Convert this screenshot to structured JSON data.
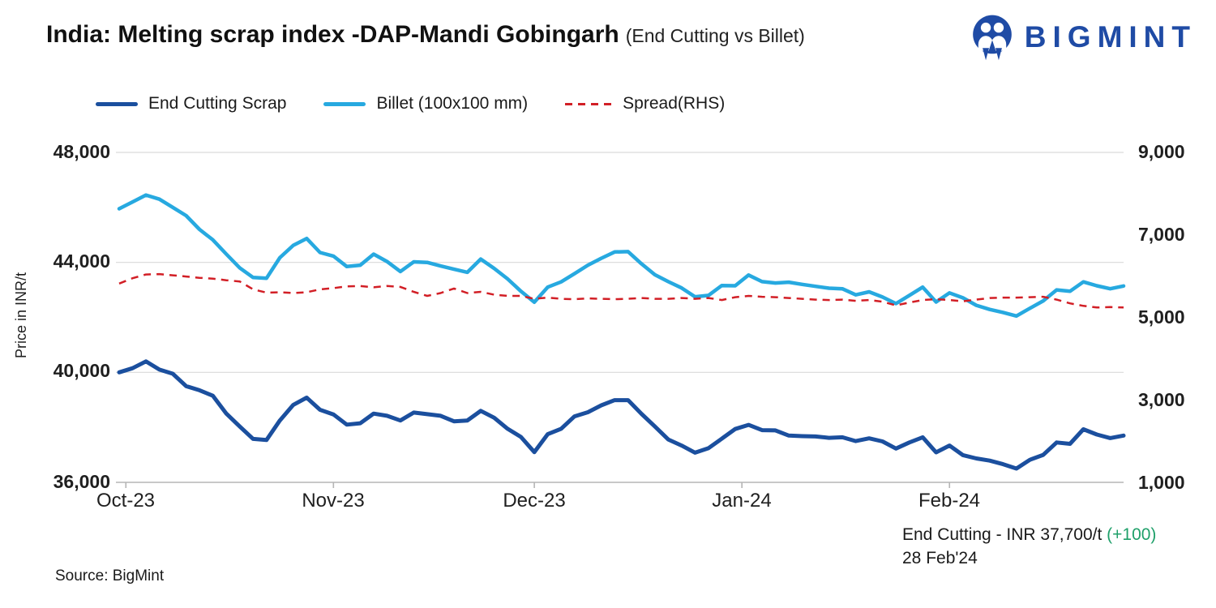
{
  "header": {
    "title": "India: Melting scrap index -DAP-Mandi Gobingarh",
    "subtitle": "(End Cutting vs Billet)",
    "logo_text": "BIGMINT",
    "brand_color": "#1F4BA5"
  },
  "legend": {
    "items": [
      {
        "label": "End Cutting Scrap",
        "color": "#1B4F9E",
        "style": "solid"
      },
      {
        "label": "Billet (100x100 mm)",
        "color": "#27A9E0",
        "style": "solid"
      },
      {
        "label": "Spread(RHS)",
        "color": "#D21F26",
        "style": "dashed"
      }
    ]
  },
  "chart_data": {
    "type": "line",
    "title": "India: Melting scrap index -DAP-Mandi Gobingarh (End Cutting vs Billet)",
    "x": {
      "unit": "days from 1 Oct 2023",
      "tick_labels": [
        "Oct-23",
        "Nov-23",
        "Dec-23",
        "Jan-24",
        "Feb-24"
      ],
      "tick_days": [
        1,
        32,
        62,
        93,
        124
      ],
      "total_days": 150,
      "point_step_days": 2
    },
    "left_axis": {
      "label": "Price in INR/t",
      "min": 36000,
      "max": 48000,
      "ticks": [
        "48,000",
        "44,000",
        "40,000",
        "36,000"
      ],
      "tick_values": [
        48000,
        44000,
        40000,
        36000
      ]
    },
    "right_axis": {
      "min": 1000,
      "max": 9000,
      "ticks": [
        "9,000",
        "7,000",
        "5,000",
        "3,000",
        "1,000"
      ],
      "tick_values": [
        9000,
        7000,
        5000,
        3000,
        1000
      ]
    },
    "grid": "horizontal",
    "legend_position": "top",
    "series": [
      {
        "name": "End Cutting Scrap",
        "axis": "left",
        "color": "#1B4F9E",
        "dash": null,
        "width": 5,
        "values": [
          40000,
          40150,
          40400,
          40100,
          39950,
          39500,
          39350,
          39150,
          38500,
          38030,
          37580,
          37540,
          38250,
          38820,
          39080,
          38640,
          38470,
          38100,
          38150,
          38500,
          38420,
          38250,
          38540,
          38480,
          38420,
          38220,
          38250,
          38600,
          38350,
          37950,
          37650,
          37100,
          37750,
          37950,
          38400,
          38550,
          38800,
          38990,
          38990,
          38490,
          38030,
          37560,
          37340,
          37080,
          37240,
          37590,
          37940,
          38090,
          37900,
          37890,
          37700,
          37680,
          37670,
          37620,
          37640,
          37500,
          37600,
          37490,
          37230,
          37450,
          37640,
          37090,
          37340,
          36990,
          36870,
          36790,
          36660,
          36500,
          36820,
          37000,
          37450,
          37400,
          37930,
          37740,
          37610,
          37700
        ]
      },
      {
        "name": "Billet (100x100 mm)",
        "axis": "left",
        "color": "#27A9E0",
        "dash": null,
        "width": 4.5,
        "values": [
          45950,
          46200,
          46450,
          46300,
          46000,
          45700,
          45200,
          44820,
          44300,
          43800,
          43450,
          43420,
          44170,
          44620,
          44870,
          44360,
          44230,
          43850,
          43900,
          44300,
          44030,
          43670,
          44020,
          44000,
          43870,
          43750,
          43640,
          44120,
          43780,
          43400,
          42950,
          42550,
          43100,
          43290,
          43590,
          43900,
          44150,
          44380,
          44390,
          43950,
          43550,
          43300,
          43070,
          42750,
          42800,
          43160,
          43150,
          43540,
          43300,
          43250,
          43280,
          43200,
          43130,
          43060,
          43040,
          42820,
          42930,
          42740,
          42500,
          42800,
          43100,
          42560,
          42890,
          42710,
          42440,
          42290,
          42180,
          42050,
          42330,
          42600,
          43000,
          42950,
          43290,
          43150,
          43040,
          43140
        ]
      },
      {
        "name": "Spread(RHS)",
        "axis": "right",
        "color": "#D21F26",
        "dash": [
          9,
          7
        ],
        "width": 2.5,
        "values": [
          5820,
          5950,
          6040,
          6050,
          6020,
          5990,
          5960,
          5940,
          5900,
          5870,
          5680,
          5600,
          5610,
          5590,
          5610,
          5680,
          5710,
          5750,
          5760,
          5730,
          5760,
          5740,
          5620,
          5520,
          5590,
          5700,
          5590,
          5620,
          5550,
          5520,
          5520,
          5450,
          5480,
          5450,
          5440,
          5460,
          5450,
          5440,
          5450,
          5470,
          5450,
          5450,
          5470,
          5450,
          5470,
          5420,
          5490,
          5520,
          5500,
          5490,
          5470,
          5450,
          5430,
          5420,
          5430,
          5400,
          5420,
          5380,
          5290,
          5360,
          5420,
          5440,
          5420,
          5390,
          5430,
          5470,
          5480,
          5480,
          5490,
          5500,
          5430,
          5340,
          5280,
          5240,
          5250,
          5240
        ]
      }
    ]
  },
  "annotation": {
    "line1_prefix": "End Cutting - INR 37,700/t ",
    "line1_highlight": "(+100)",
    "line2": "28 Feb'24",
    "highlight_color": "#1FA06A"
  },
  "source": {
    "text": "Source: BigMint"
  }
}
